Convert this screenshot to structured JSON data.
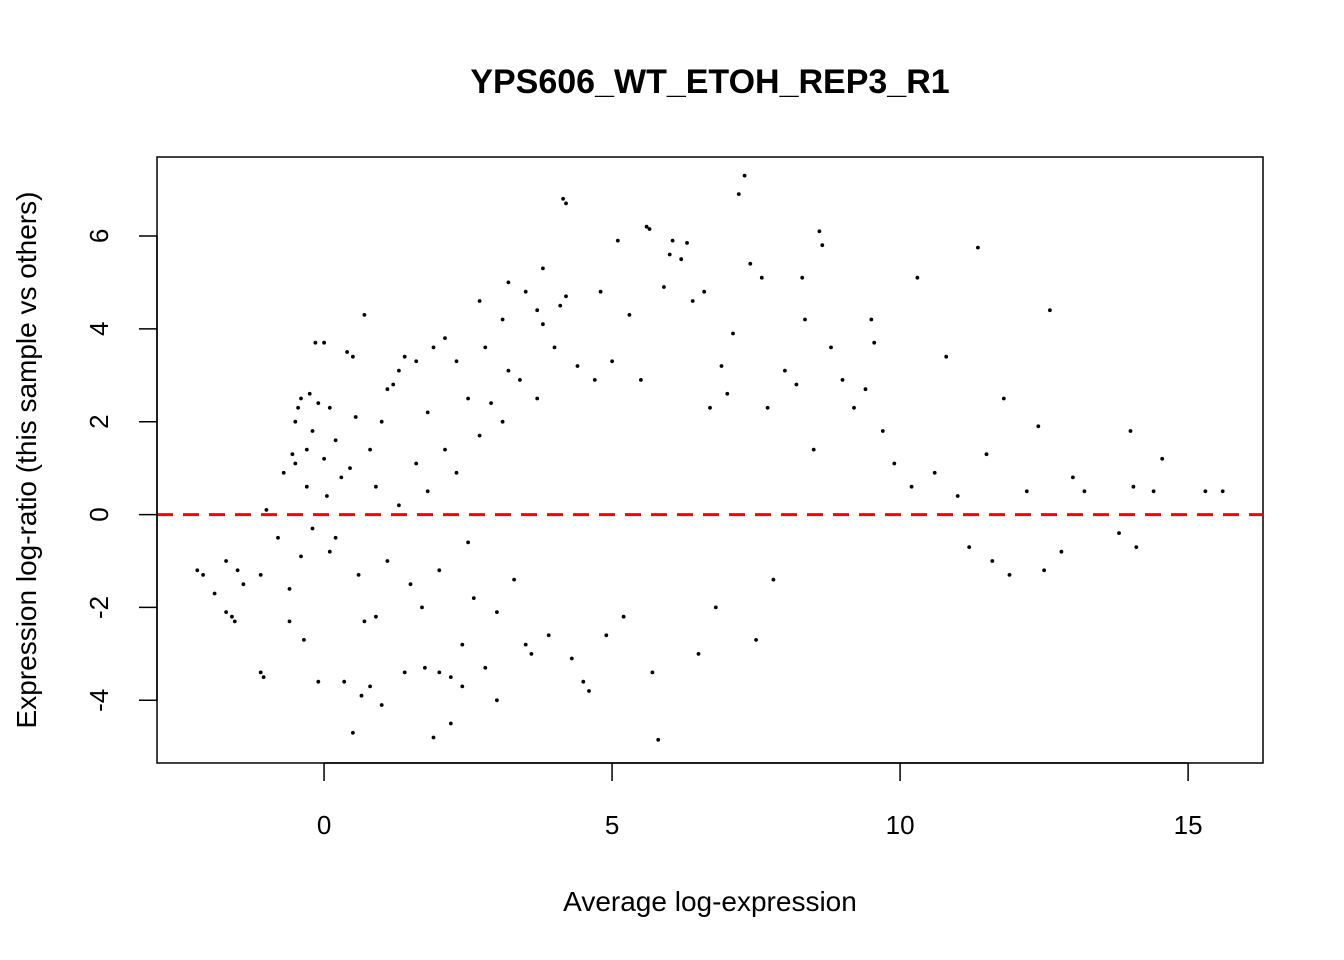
{
  "chart_data": {
    "type": "scatter",
    "title": "YPS606_WT_ETOH_REP3_R1",
    "xlabel": "Average log-expression",
    "ylabel": "Expression log-ratio (this sample vs others)",
    "xlim": [
      -2.9,
      16.3
    ],
    "ylim": [
      -5.35,
      7.7
    ],
    "xticks": [
      0,
      5,
      10,
      15
    ],
    "yticks": [
      -4,
      -2,
      0,
      2,
      4,
      6
    ],
    "grid": false,
    "legend": "none",
    "reference_line": {
      "y": 0,
      "style": "dashed",
      "color": "#ff0000"
    },
    "point_color": "#000000",
    "series": [
      {
        "points": [
          [
            -2.2,
            -1.2
          ],
          [
            -2.1,
            -1.3
          ],
          [
            -1.9,
            -1.7
          ],
          [
            -1.7,
            -1.0
          ],
          [
            -1.7,
            -2.1
          ],
          [
            -1.6,
            -2.2
          ],
          [
            -1.55,
            -2.3
          ],
          [
            -1.5,
            -1.2
          ],
          [
            -1.4,
            -1.5
          ],
          [
            -1.1,
            -1.3
          ],
          [
            -1.1,
            -3.4
          ],
          [
            -1.05,
            -3.5
          ],
          [
            -1.0,
            0.1
          ],
          [
            -0.8,
            -0.5
          ],
          [
            -0.7,
            0.9
          ],
          [
            -0.6,
            -1.6
          ],
          [
            -0.6,
            -2.3
          ],
          [
            -0.55,
            1.3
          ],
          [
            -0.5,
            1.1
          ],
          [
            -0.5,
            2.0
          ],
          [
            -0.45,
            2.3
          ],
          [
            -0.4,
            2.5
          ],
          [
            -0.4,
            -0.9
          ],
          [
            -0.35,
            -2.7
          ],
          [
            -0.3,
            0.6
          ],
          [
            -0.3,
            1.4
          ],
          [
            -0.25,
            2.6
          ],
          [
            -0.2,
            -0.3
          ],
          [
            -0.2,
            1.8
          ],
          [
            -0.15,
            3.7
          ],
          [
            -0.1,
            2.4
          ],
          [
            -0.1,
            -3.6
          ],
          [
            0.0,
            3.7
          ],
          [
            0.0,
            1.2
          ],
          [
            0.05,
            0.4
          ],
          [
            0.1,
            -0.8
          ],
          [
            0.1,
            2.3
          ],
          [
            0.2,
            -0.5
          ],
          [
            0.2,
            1.6
          ],
          [
            0.3,
            0.8
          ],
          [
            0.35,
            -3.6
          ],
          [
            0.4,
            3.5
          ],
          [
            0.45,
            1.0
          ],
          [
            0.5,
            3.4
          ],
          [
            0.5,
            -4.7
          ],
          [
            0.55,
            2.1
          ],
          [
            0.6,
            -1.3
          ],
          [
            0.65,
            -3.9
          ],
          [
            0.7,
            4.3
          ],
          [
            0.7,
            -2.3
          ],
          [
            0.8,
            1.4
          ],
          [
            0.8,
            -3.7
          ],
          [
            0.9,
            0.6
          ],
          [
            0.9,
            -2.2
          ],
          [
            1.0,
            2.0
          ],
          [
            1.0,
            -4.1
          ],
          [
            1.1,
            2.7
          ],
          [
            1.1,
            -1.0
          ],
          [
            1.2,
            2.8
          ],
          [
            1.3,
            3.1
          ],
          [
            1.3,
            0.2
          ],
          [
            1.4,
            3.4
          ],
          [
            1.4,
            -3.4
          ],
          [
            1.5,
            -1.5
          ],
          [
            1.6,
            3.3
          ],
          [
            1.6,
            1.1
          ],
          [
            1.7,
            -2.0
          ],
          [
            1.75,
            -3.3
          ],
          [
            1.8,
            2.2
          ],
          [
            1.8,
            0.5
          ],
          [
            1.9,
            3.6
          ],
          [
            1.9,
            -4.8
          ],
          [
            2.0,
            -1.2
          ],
          [
            2.0,
            -3.4
          ],
          [
            2.1,
            3.8
          ],
          [
            2.1,
            1.4
          ],
          [
            2.2,
            -3.5
          ],
          [
            2.2,
            -4.5
          ],
          [
            2.3,
            3.3
          ],
          [
            2.3,
            0.9
          ],
          [
            2.4,
            -2.8
          ],
          [
            2.4,
            -3.7
          ],
          [
            2.5,
            2.5
          ],
          [
            2.5,
            -0.6
          ],
          [
            2.6,
            -1.8
          ],
          [
            2.7,
            4.6
          ],
          [
            2.7,
            1.7
          ],
          [
            2.8,
            3.6
          ],
          [
            2.8,
            -3.3
          ],
          [
            2.9,
            2.4
          ],
          [
            3.0,
            -4.0
          ],
          [
            3.0,
            -2.1
          ],
          [
            3.1,
            4.2
          ],
          [
            3.1,
            2.0
          ],
          [
            3.2,
            5.0
          ],
          [
            3.2,
            3.1
          ],
          [
            3.3,
            -1.4
          ],
          [
            3.4,
            2.9
          ],
          [
            3.5,
            4.8
          ],
          [
            3.5,
            -2.8
          ],
          [
            3.6,
            -3.0
          ],
          [
            3.7,
            4.4
          ],
          [
            3.7,
            2.5
          ],
          [
            3.8,
            5.3
          ],
          [
            3.8,
            4.1
          ],
          [
            3.9,
            -2.6
          ],
          [
            4.0,
            3.6
          ],
          [
            4.1,
            4.5
          ],
          [
            4.15,
            6.8
          ],
          [
            4.2,
            6.7
          ],
          [
            4.2,
            4.7
          ],
          [
            4.3,
            -3.1
          ],
          [
            4.4,
            3.2
          ],
          [
            4.5,
            -3.6
          ],
          [
            4.6,
            -3.8
          ],
          [
            4.7,
            2.9
          ],
          [
            4.8,
            4.8
          ],
          [
            4.9,
            -2.6
          ],
          [
            5.0,
            3.3
          ],
          [
            5.1,
            5.9
          ],
          [
            5.2,
            -2.2
          ],
          [
            5.3,
            4.3
          ],
          [
            5.5,
            2.9
          ],
          [
            5.6,
            6.2
          ],
          [
            5.65,
            6.15
          ],
          [
            5.7,
            -3.4
          ],
          [
            5.8,
            -4.85
          ],
          [
            5.9,
            4.9
          ],
          [
            6.0,
            5.6
          ],
          [
            6.05,
            5.9
          ],
          [
            6.2,
            5.5
          ],
          [
            6.3,
            5.85
          ],
          [
            6.4,
            4.6
          ],
          [
            6.5,
            -3.0
          ],
          [
            6.6,
            4.8
          ],
          [
            6.7,
            2.3
          ],
          [
            6.8,
            -2.0
          ],
          [
            6.9,
            3.2
          ],
          [
            7.0,
            2.6
          ],
          [
            7.1,
            3.9
          ],
          [
            7.2,
            6.9
          ],
          [
            7.3,
            7.3
          ],
          [
            7.4,
            5.4
          ],
          [
            7.5,
            -2.7
          ],
          [
            7.6,
            5.1
          ],
          [
            7.7,
            2.3
          ],
          [
            7.8,
            -1.4
          ],
          [
            8.0,
            3.1
          ],
          [
            8.2,
            2.8
          ],
          [
            8.3,
            5.1
          ],
          [
            8.35,
            4.2
          ],
          [
            8.5,
            1.4
          ],
          [
            8.6,
            6.1
          ],
          [
            8.65,
            5.8
          ],
          [
            8.8,
            3.6
          ],
          [
            9.0,
            2.9
          ],
          [
            9.2,
            2.3
          ],
          [
            9.4,
            2.7
          ],
          [
            9.5,
            4.2
          ],
          [
            9.55,
            3.7
          ],
          [
            9.7,
            1.8
          ],
          [
            9.9,
            1.1
          ],
          [
            10.2,
            0.6
          ],
          [
            10.3,
            5.1
          ],
          [
            10.6,
            0.9
          ],
          [
            10.8,
            3.4
          ],
          [
            11.0,
            0.4
          ],
          [
            11.2,
            -0.7
          ],
          [
            11.35,
            5.75
          ],
          [
            11.5,
            1.3
          ],
          [
            11.6,
            -1.0
          ],
          [
            11.8,
            2.5
          ],
          [
            11.9,
            -1.3
          ],
          [
            12.2,
            0.5
          ],
          [
            12.4,
            1.9
          ],
          [
            12.5,
            -1.2
          ],
          [
            12.6,
            4.4
          ],
          [
            12.8,
            -0.8
          ],
          [
            13.0,
            0.8
          ],
          [
            13.2,
            0.5
          ],
          [
            13.8,
            -0.4
          ],
          [
            14.0,
            1.8
          ],
          [
            14.05,
            0.6
          ],
          [
            14.1,
            -0.7
          ],
          [
            14.4,
            0.5
          ],
          [
            14.55,
            1.2
          ],
          [
            15.3,
            0.5
          ],
          [
            15.6,
            0.5
          ]
        ]
      }
    ]
  }
}
